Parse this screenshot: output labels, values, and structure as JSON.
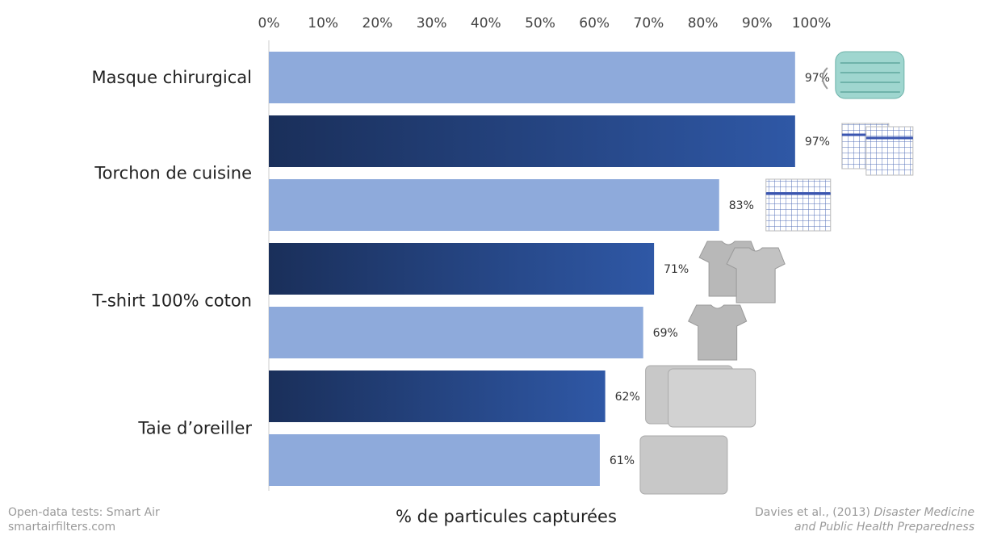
{
  "chart_data": {
    "type": "bar",
    "orientation": "horizontal",
    "title": "",
    "xlabel": "% de particules capturées",
    "xlim": [
      0,
      100
    ],
    "x_ticks": [
      "0%",
      "10%",
      "20%",
      "30%",
      "40%",
      "50%",
      "60%",
      "70%",
      "80%",
      "90%",
      "100%"
    ],
    "x_ticks_position": "top",
    "grid": false,
    "categories": [
      "Masque chirurgical",
      "Torchon de cuisine",
      "T-shirt 100% coton",
      "Taie d’oreiller"
    ],
    "bars": [
      {
        "category": "Masque chirurgical",
        "value": 97,
        "label": "97%",
        "style": "light",
        "image": "surgical-mask"
      },
      {
        "category": "Torchon de cuisine",
        "value": 97,
        "label": "97%",
        "style": "dark",
        "image": "tea-towel-double"
      },
      {
        "category": "Torchon de cuisine",
        "value": 83,
        "label": "83%",
        "style": "light",
        "image": "tea-towel"
      },
      {
        "category": "T-shirt 100% coton",
        "value": 71,
        "label": "71%",
        "style": "dark",
        "image": "tshirt-double"
      },
      {
        "category": "T-shirt 100% coton",
        "value": 69,
        "label": "69%",
        "style": "light",
        "image": "tshirt"
      },
      {
        "category": "Taie d’oreiller",
        "value": 62,
        "label": "62%",
        "style": "dark",
        "image": "pillowcase-double"
      },
      {
        "category": "Taie d’oreiller",
        "value": 61,
        "label": "61%",
        "style": "light",
        "image": "pillowcase"
      }
    ],
    "colors": {
      "light": "#8eaadb",
      "dark_start": "#1a2f5a",
      "dark_end": "#2f58a6"
    }
  },
  "footer": {
    "left_line1": "Open-data tests: Smart Air",
    "left_line2": "smartairfilters.com",
    "right_prefix": "Davies et al., (2013)",
    "right_journal_1": "Disaster Medicine",
    "right_journal_2": "and Public Health Preparedness"
  }
}
